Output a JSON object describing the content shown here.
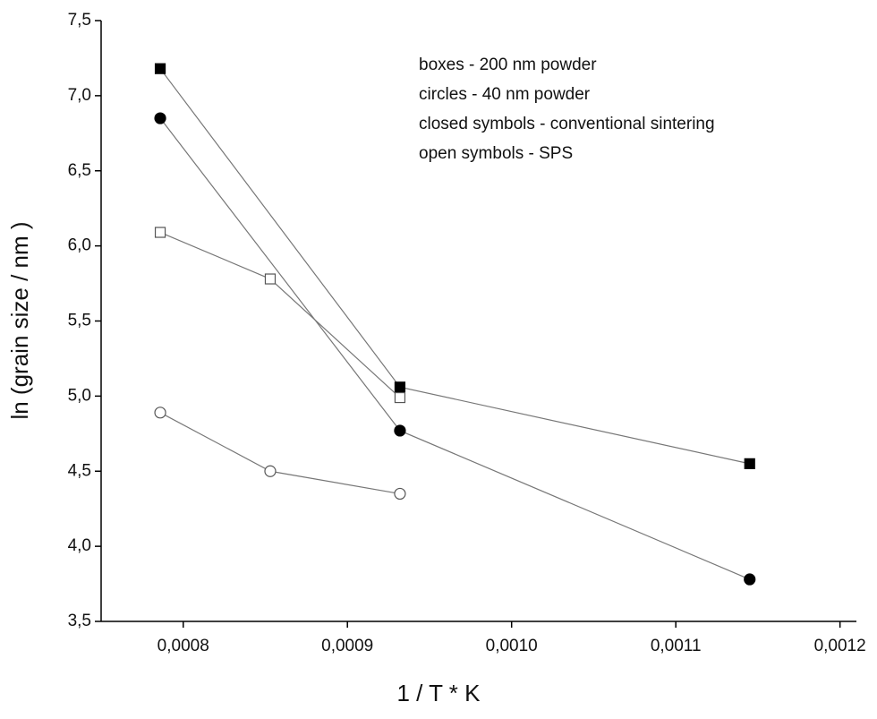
{
  "chart_data": {
    "type": "scatter",
    "x_label": "1 / T * K",
    "y_label": "ln (grain size / nm )",
    "annotations": [
      "boxes - 200 nm powder",
      "circles - 40 nm powder",
      "closed symbols - conventional sintering",
      "open symbols - SPS"
    ],
    "xlim": [
      0.00075,
      0.00121
    ],
    "xticks": [
      {
        "value": 0.0008,
        "label": "0,0008"
      },
      {
        "value": 0.0009,
        "label": "0,0009"
      },
      {
        "value": 0.001,
        "label": "0,0010"
      },
      {
        "value": 0.0011,
        "label": "0,0011"
      },
      {
        "value": 0.0012,
        "label": "0,0012"
      }
    ],
    "ylim": [
      3.5,
      7.5
    ],
    "yticks": [
      {
        "value": 3.5,
        "label": "3,5"
      },
      {
        "value": 4.0,
        "label": "4,0"
      },
      {
        "value": 4.5,
        "label": "4,5"
      },
      {
        "value": 5.0,
        "label": "5,0"
      },
      {
        "value": 5.5,
        "label": "5,5"
      },
      {
        "value": 6.0,
        "label": "6,0"
      },
      {
        "value": 6.5,
        "label": "6,5"
      },
      {
        "value": 7.0,
        "label": "7,0"
      },
      {
        "value": 7.5,
        "label": "7,5"
      }
    ],
    "line_color": "#777777",
    "series": [
      {
        "marker": "square",
        "filled": true,
        "color": "#000000",
        "x": [
          0.000786,
          0.000932,
          0.001145
        ],
        "values": [
          7.18,
          5.06,
          4.55
        ]
      },
      {
        "marker": "circle",
        "filled": true,
        "color": "#000000",
        "x": [
          0.000786,
          0.000932,
          0.001145
        ],
        "values": [
          6.85,
          4.77,
          3.78
        ]
      },
      {
        "marker": "square",
        "filled": false,
        "color": "#555555",
        "x": [
          0.000786,
          0.000853,
          0.000932
        ],
        "values": [
          6.09,
          5.78,
          4.99
        ]
      },
      {
        "marker": "circle",
        "filled": false,
        "color": "#555555",
        "x": [
          0.000786,
          0.000853,
          0.000932
        ],
        "values": [
          4.89,
          4.5,
          4.35
        ]
      }
    ]
  }
}
